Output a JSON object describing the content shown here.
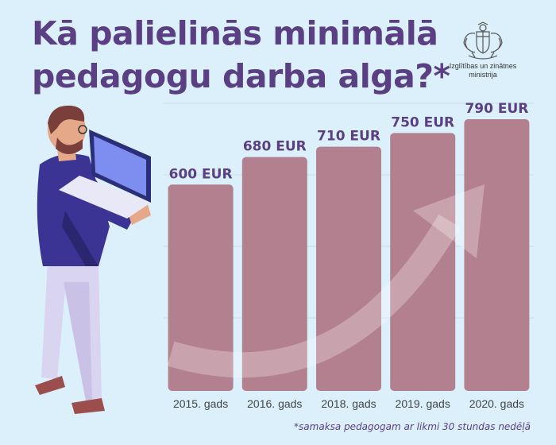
{
  "title_line1": "Kā palielinās minimālā",
  "title_line2": "pedagogu darba alga?*",
  "logo": {
    "line1": "Izglītības un zinātnes",
    "line2": "ministrija",
    "emblem": "coat-of-arms-icon"
  },
  "footnote": "*samaksa pedagogam ar likmi 30 stundas nedēļā",
  "illustration": "teacher-with-laptop-icon",
  "colors": {
    "background": "#dcf0fb",
    "title": "#5a3f83",
    "bar": "#b3808f",
    "arrow": "#ffffff"
  },
  "chart_data": {
    "type": "bar",
    "categories": [
      "2015. gads",
      "2016. gads",
      "2018. gads",
      "2019. gads",
      "2020. gads"
    ],
    "values": [
      600,
      680,
      710,
      750,
      790
    ],
    "value_labels": [
      "600 EUR",
      "680 EUR",
      "710 EUR",
      "750 EUR",
      "790 EUR"
    ],
    "title": "Kā palielinās minimālā pedagogu darba alga?*",
    "xlabel": "",
    "ylabel": "",
    "unit": "EUR",
    "ylim": [
      0,
      790
    ],
    "grid": true,
    "legend": "none"
  }
}
